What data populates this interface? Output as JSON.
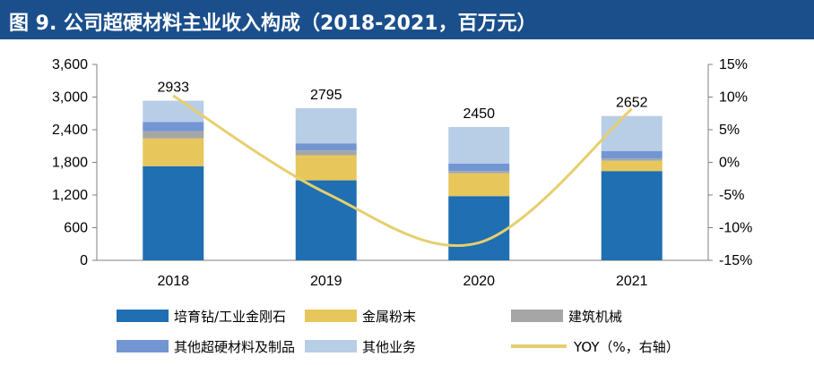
{
  "title": "图 9. 公司超硬材料主业收入构成（2018-2021，百万元）",
  "colors": {
    "title_bg": "#1b4f8c",
    "s1": "#1f6fb2",
    "s2": "#e7c65c",
    "s3": "#a6a6a6",
    "s4": "#7296d3",
    "s5": "#b8cde6",
    "line": "#e6cf6e"
  },
  "chart_data": {
    "type": "bar",
    "stacked": true,
    "categories": [
      "2018",
      "2019",
      "2020",
      "2021"
    ],
    "series": [
      {
        "name": "培育钻/工业金刚石",
        "values": [
          1730,
          1470,
          1180,
          1640
        ]
      },
      {
        "name": "金属粉末",
        "values": [
          510,
          460,
          420,
          190
        ]
      },
      {
        "name": "建筑机械",
        "values": [
          130,
          90,
          40,
          40
        ]
      },
      {
        "name": "其他超硬材料及制品",
        "values": [
          170,
          130,
          140,
          140
        ]
      },
      {
        "name": "其他业务",
        "values": [
          393,
          645,
          670,
          642
        ]
      }
    ],
    "totals": [
      2933,
      2795,
      2450,
      2652
    ],
    "line": {
      "name": "YOY（%，右轴）",
      "values": [
        10.2,
        -4.7,
        -12.3,
        8.2
      ]
    },
    "ylim": [
      0,
      3600
    ],
    "yticks": [
      "0",
      "600",
      "1,200",
      "1,800",
      "2,400",
      "3,000",
      "3,600"
    ],
    "y2lim": [
      -15,
      15
    ],
    "y2ticks": [
      "-15%",
      "-10%",
      "-5%",
      "0%",
      "5%",
      "10%",
      "15%"
    ],
    "legend_placement": "bottom"
  }
}
